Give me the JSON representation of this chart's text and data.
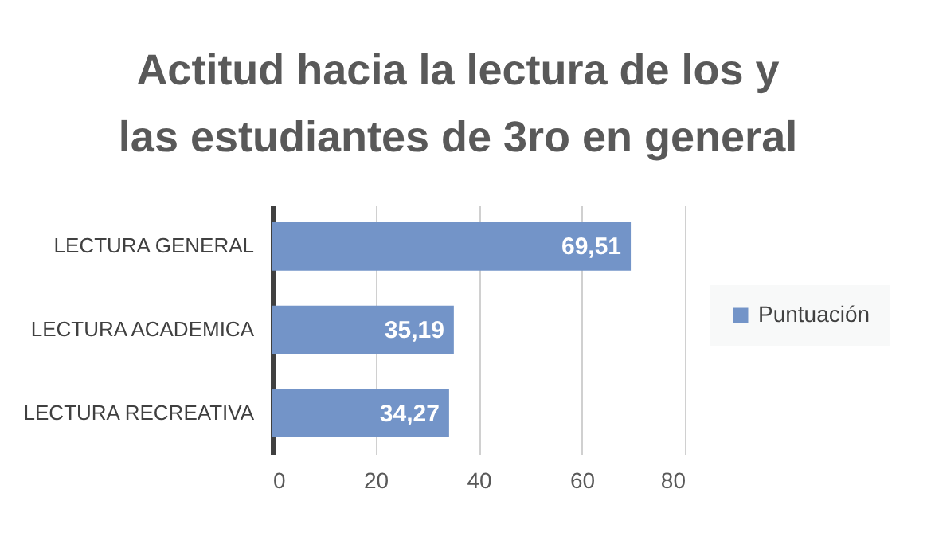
{
  "chart_data": {
    "type": "bar",
    "orientation": "horizontal",
    "title": "Actitud hacia la lectura de los y las estudiantes de 3ro en general",
    "categories": [
      "LECTURA GENERAL",
      "LECTURA ACADEMICA",
      "LECTURA RECREATIVA"
    ],
    "series": [
      {
        "name": "Puntuación",
        "color": "#7394c8",
        "values": [
          69.51,
          35.19,
          34.27
        ],
        "value_labels": [
          "69,51",
          "35,19",
          "34,27"
        ]
      }
    ],
    "xlim": [
      0,
      80
    ],
    "xticks": [
      0,
      20,
      40,
      60,
      80
    ],
    "grid": "x",
    "legend": "right"
  }
}
